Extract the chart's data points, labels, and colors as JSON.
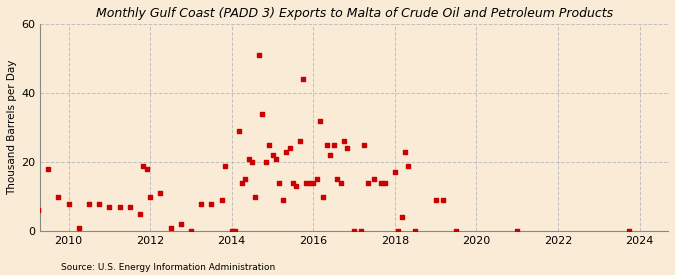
{
  "title": "Monthly Gulf Coast (PADD 3) Exports to Malta of Crude Oil and Petroleum Products",
  "ylabel": "Thousand Barrels per Day",
  "source": "Source: U.S. Energy Information Administration",
  "background_color": "#faebd7",
  "marker_color": "#cc0000",
  "grid_color": "#bbbbbb",
  "ylim": [
    0,
    60
  ],
  "yticks": [
    0,
    20,
    40,
    60
  ],
  "xlim_start": 2009.3,
  "xlim_end": 2024.7,
  "xticks": [
    2010,
    2012,
    2014,
    2016,
    2018,
    2020,
    2022,
    2024
  ],
  "data_points": [
    [
      2009.25,
      6
    ],
    [
      2009.5,
      18
    ],
    [
      2009.75,
      10
    ],
    [
      2010.0,
      8
    ],
    [
      2010.25,
      1
    ],
    [
      2010.5,
      8
    ],
    [
      2010.75,
      8
    ],
    [
      2011.0,
      7
    ],
    [
      2011.25,
      7
    ],
    [
      2011.5,
      7
    ],
    [
      2011.75,
      5
    ],
    [
      2011.83,
      19
    ],
    [
      2011.92,
      18
    ],
    [
      2012.0,
      10
    ],
    [
      2012.25,
      11
    ],
    [
      2012.5,
      1
    ],
    [
      2012.75,
      2
    ],
    [
      2013.0,
      0
    ],
    [
      2013.25,
      8
    ],
    [
      2013.5,
      8
    ],
    [
      2013.75,
      9
    ],
    [
      2013.83,
      19
    ],
    [
      2014.0,
      0
    ],
    [
      2014.08,
      0
    ],
    [
      2014.17,
      29
    ],
    [
      2014.25,
      14
    ],
    [
      2014.33,
      15
    ],
    [
      2014.42,
      21
    ],
    [
      2014.5,
      20
    ],
    [
      2014.58,
      10
    ],
    [
      2014.67,
      51
    ],
    [
      2014.75,
      34
    ],
    [
      2014.83,
      20
    ],
    [
      2014.92,
      25
    ],
    [
      2015.0,
      22
    ],
    [
      2015.08,
      21
    ],
    [
      2015.17,
      14
    ],
    [
      2015.25,
      9
    ],
    [
      2015.33,
      23
    ],
    [
      2015.42,
      24
    ],
    [
      2015.5,
      14
    ],
    [
      2015.58,
      13
    ],
    [
      2015.67,
      26
    ],
    [
      2015.75,
      44
    ],
    [
      2015.83,
      14
    ],
    [
      2015.92,
      14
    ],
    [
      2016.0,
      14
    ],
    [
      2016.08,
      15
    ],
    [
      2016.17,
      32
    ],
    [
      2016.25,
      10
    ],
    [
      2016.33,
      25
    ],
    [
      2016.42,
      22
    ],
    [
      2016.5,
      25
    ],
    [
      2016.58,
      15
    ],
    [
      2016.67,
      14
    ],
    [
      2016.75,
      26
    ],
    [
      2016.83,
      24
    ],
    [
      2017.0,
      0
    ],
    [
      2017.17,
      0
    ],
    [
      2017.25,
      25
    ],
    [
      2017.33,
      14
    ],
    [
      2017.5,
      15
    ],
    [
      2017.67,
      14
    ],
    [
      2017.75,
      14
    ],
    [
      2018.0,
      17
    ],
    [
      2018.08,
      0
    ],
    [
      2018.17,
      4
    ],
    [
      2018.25,
      23
    ],
    [
      2018.33,
      19
    ],
    [
      2018.5,
      0
    ],
    [
      2019.0,
      9
    ],
    [
      2019.17,
      9
    ],
    [
      2019.5,
      0
    ],
    [
      2021.0,
      0
    ],
    [
      2023.75,
      0
    ]
  ]
}
